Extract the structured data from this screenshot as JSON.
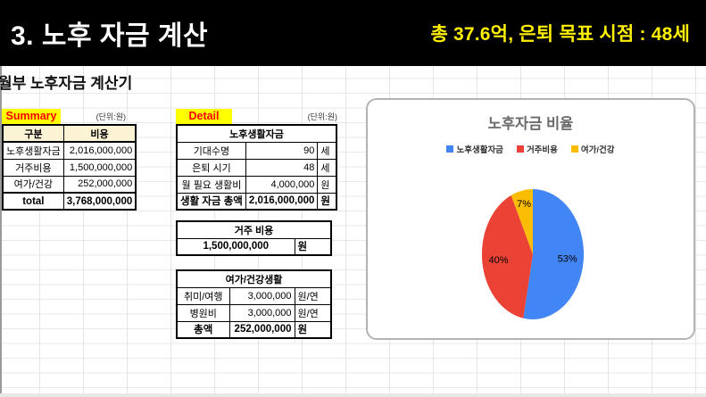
{
  "header": {
    "title": "3.  노후 자금 계산",
    "highlight": "총 37.6억, 은퇴 목표 시점  : 48세",
    "highlight_color": "#ffef00",
    "background": "#000000"
  },
  "sheet": {
    "title": "월부 노후자금 계산기"
  },
  "summary": {
    "label": "Summary",
    "unit_note": "(단위:원)",
    "columns": [
      "구분",
      "비용"
    ],
    "rows": [
      [
        "노후생활자금",
        "2,016,000,000"
      ],
      [
        "거주비용",
        "1,500,000,000"
      ],
      [
        "여가/건강",
        "252,000,000"
      ]
    ],
    "total": [
      "total",
      "3,768,000,000"
    ]
  },
  "detail": {
    "label": "Detail",
    "unit_note": "(단위:원)",
    "tables": [
      {
        "title": "노후생활자금",
        "rows": [
          {
            "label": "기대수명",
            "value": "90",
            "unit": "세",
            "bold": false
          },
          {
            "label": "은퇴 시기",
            "value": "48",
            "unit": "세",
            "bold": false
          },
          {
            "label": "월 필요 생활비",
            "value": "4,000,000",
            "unit": "원",
            "bold": false
          },
          {
            "label": "생활 자금 총액",
            "value": "2,016,000,000",
            "unit": "원",
            "bold": true
          }
        ]
      },
      {
        "title": "거주 비용",
        "rows": [
          {
            "label": "",
            "value": "1,500,000,000",
            "unit": "원",
            "bold": true,
            "merged": true
          }
        ]
      },
      {
        "title": "여가/건강생활",
        "rows": [
          {
            "label": "취미/여행",
            "value": "3,000,000",
            "unit": "원/연",
            "bold": false
          },
          {
            "label": "병원비",
            "value": "3,000,000",
            "unit": "원/연",
            "bold": false
          },
          {
            "label": "총액",
            "value": "252,000,000",
            "unit": "원",
            "bold": true
          }
        ]
      }
    ]
  },
  "chart_data": {
    "type": "pie",
    "title": "노후자금 비율",
    "legend_position": "top",
    "label_format": "percent",
    "slices": [
      {
        "label": "노후생활자금",
        "value": 53,
        "color": "#4285f4"
      },
      {
        "label": "거주비용",
        "value": 40,
        "color": "#ea4335"
      },
      {
        "label": "여가/건강",
        "value": 7,
        "color": "#fbbc04"
      }
    ]
  }
}
